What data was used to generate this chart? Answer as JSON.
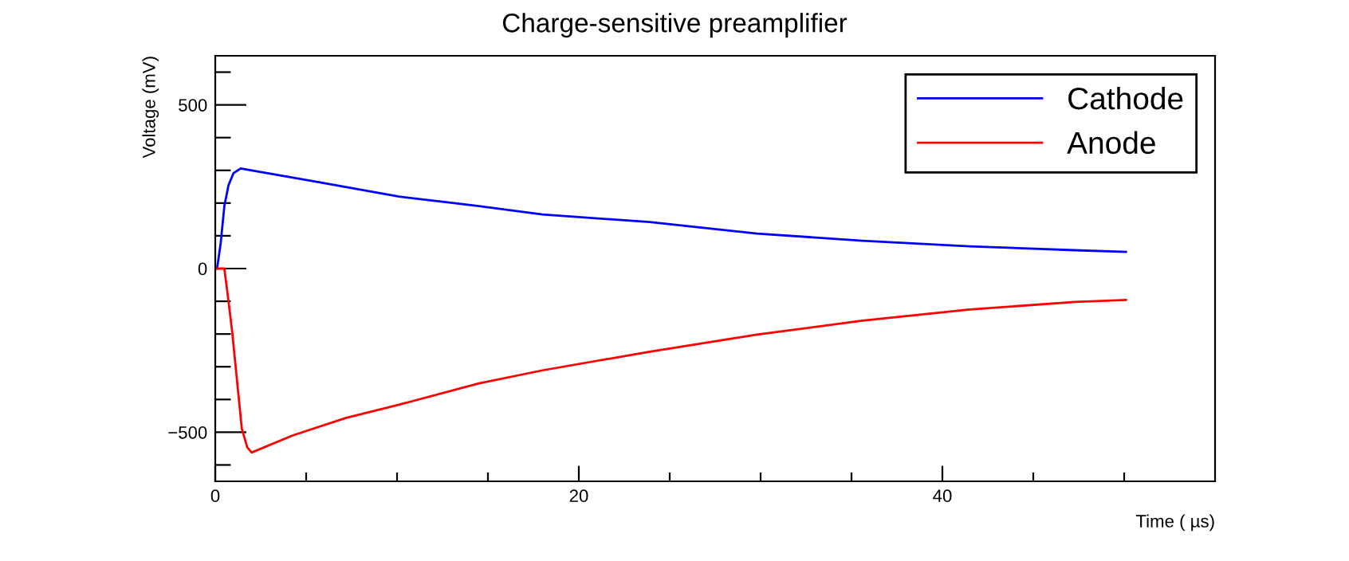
{
  "chart_data": {
    "type": "line",
    "title": "Charge-sensitive preamplifier",
    "xlabel": "Time ( µs)",
    "ylabel": "Voltage (mV)",
    "xlim": [
      0,
      55
    ],
    "ylim": [
      -650,
      650
    ],
    "xticks": [
      0,
      {
        "value": 5,
        "label": null
      },
      {
        "value": 10,
        "label": null
      },
      {
        "value": 15,
        "label": null
      },
      20,
      {
        "value": 25,
        "label": null
      },
      {
        "value": 30,
        "label": null
      },
      {
        "value": 35,
        "label": null
      },
      40,
      {
        "value": 45,
        "label": null
      },
      {
        "value": 50,
        "label": null
      }
    ],
    "yticks": [
      {
        "value": -600,
        "label": null
      },
      -500,
      {
        "value": -400,
        "label": null
      },
      {
        "value": -300,
        "label": null
      },
      {
        "value": -200,
        "label": null
      },
      {
        "value": -100,
        "label": null
      },
      0,
      {
        "value": 100,
        "label": null
      },
      {
        "value": 200,
        "label": null
      },
      {
        "value": 300,
        "label": null
      },
      {
        "value": 400,
        "label": null
      },
      500,
      {
        "value": 600,
        "label": null
      }
    ],
    "grid": false,
    "legend": "top right",
    "series": [
      {
        "name": "Cathode",
        "color": "#0000ff",
        "x": [
          0.1,
          0.3,
          0.5,
          0.73,
          1.0,
          1.4,
          1.76,
          5.7,
          10.1,
          14.5,
          18.0,
          23.9,
          29.8,
          35.6,
          41.5,
          47.3,
          50.1
        ],
        "values": [
          0,
          78,
          191,
          255,
          291,
          306,
          302,
          264,
          220,
          191,
          165,
          142,
          107,
          85,
          68,
          56,
          51
        ]
      },
      {
        "name": "Anode",
        "color": "#ff0000",
        "x": [
          0.1,
          0.5,
          0.73,
          0.94,
          1.17,
          1.46,
          1.76,
          2.0,
          4.25,
          7.2,
          10.1,
          14.5,
          18.0,
          23.9,
          29.8,
          35.6,
          41.5,
          47.3,
          50.1
        ],
        "values": [
          0,
          0,
          -100,
          -198,
          -327,
          -489,
          -546,
          -562,
          -510,
          -456,
          -416,
          -351,
          -311,
          -254,
          -202,
          -159,
          -125,
          -102,
          -96
        ]
      }
    ]
  }
}
